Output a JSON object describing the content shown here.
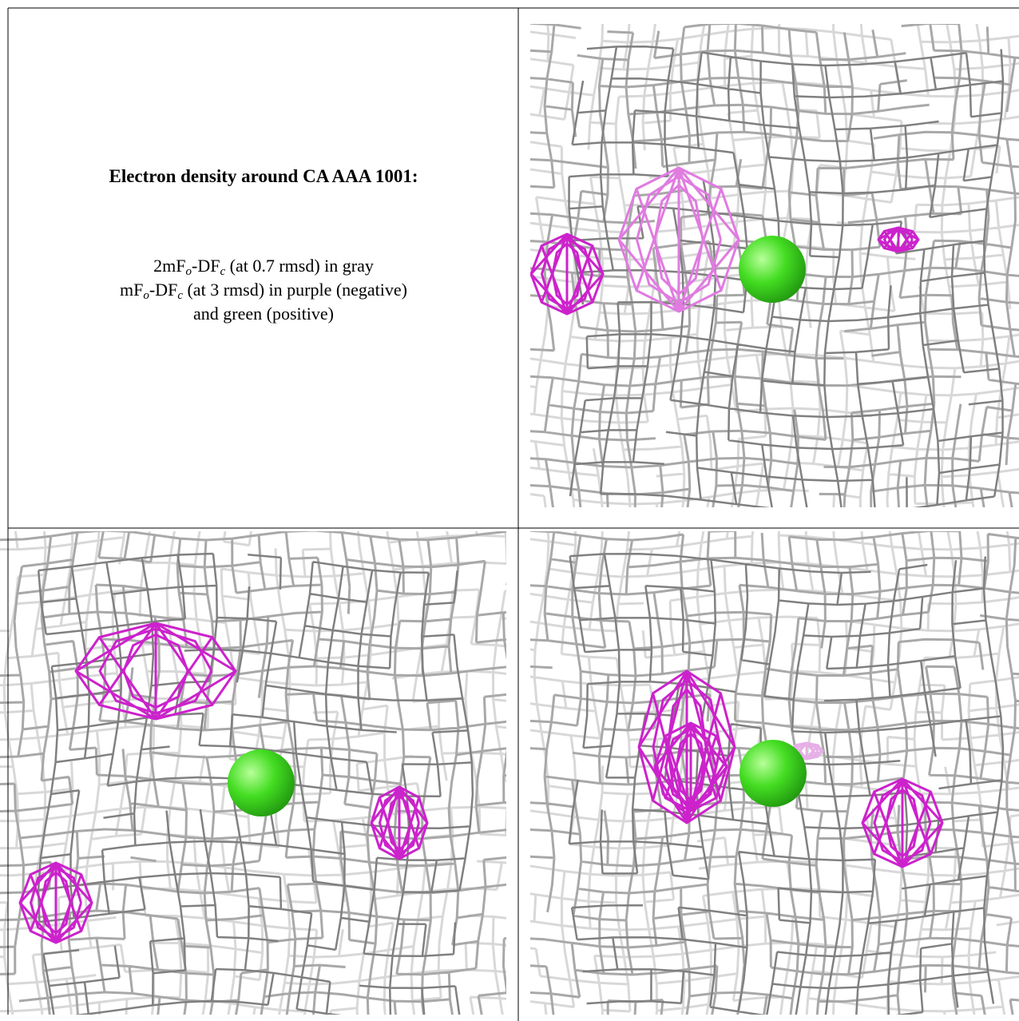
{
  "header": {
    "title": "Electron density around CA AAA 1001:"
  },
  "caption": {
    "lines": [
      [
        "2mF",
        "o",
        "-DF",
        "c",
        " (at 0.7 rmsd) in gray"
      ],
      [
        "mF",
        "o",
        "-DF",
        "c",
        " (at 3 rmsd) in purple (negative)"
      ],
      [
        "and green (positive)"
      ]
    ]
  }
}
